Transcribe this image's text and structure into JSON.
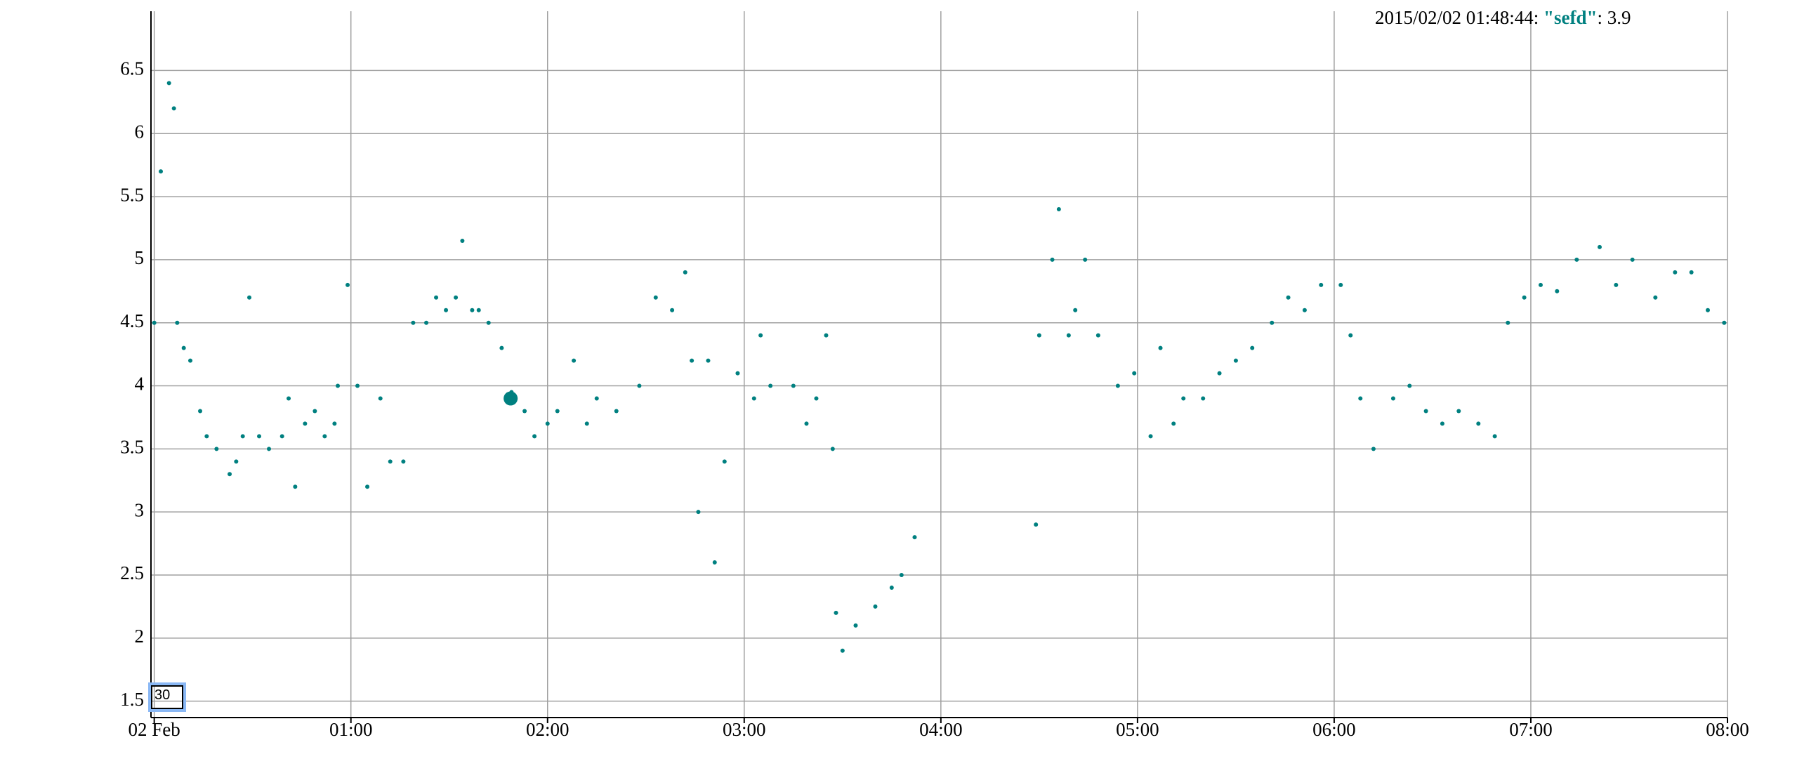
{
  "chart_data": {
    "type": "scatter",
    "x": [
      0,
      2,
      4.5,
      6,
      7,
      9,
      11,
      14,
      16,
      19,
      23,
      25,
      27,
      29,
      32,
      35,
      39,
      41,
      43,
      46,
      49,
      52,
      55,
      56,
      59,
      62,
      65,
      69,
      72,
      76,
      79,
      83,
      86,
      89,
      92,
      94,
      97,
      99,
      102,
      106,
      109,
      113,
      116,
      120,
      123,
      128,
      132,
      135,
      141,
      148,
      153,
      158,
      162,
      164,
      166,
      169,
      171,
      174,
      178,
      183,
      185,
      188,
      195,
      199,
      202,
      205,
      207,
      208,
      210,
      214,
      220,
      225,
      228,
      232,
      269,
      270,
      274,
      276,
      279,
      281,
      284,
      288,
      294,
      299,
      304,
      307,
      311,
      314,
      320,
      325,
      330,
      335,
      341,
      346,
      351,
      356,
      362,
      365,
      368,
      372,
      378,
      383,
      388,
      393,
      398,
      404,
      409,
      413,
      418,
      423,
      428,
      434,
      441,
      446,
      451,
      458,
      464,
      469,
      474,
      479
    ],
    "series": [
      {
        "name": "\"sefd\"",
        "color": "#008080",
        "values": [
          4.5,
          5.7,
          6.4,
          6.2,
          4.5,
          4.3,
          4.2,
          3.8,
          3.6,
          3.5,
          3.3,
          3.4,
          3.6,
          4.7,
          3.6,
          3.5,
          3.6,
          3.9,
          3.2,
          3.7,
          3.8,
          3.6,
          3.7,
          4.0,
          4.8,
          4.0,
          3.2,
          3.9,
          3.4,
          3.4,
          4.5,
          4.5,
          4.7,
          4.6,
          4.7,
          5.15,
          4.6,
          4.6,
          4.5,
          4.3,
          3.95,
          3.8,
          3.6,
          3.7,
          3.8,
          4.2,
          3.7,
          3.9,
          3.8,
          4.0,
          4.7,
          4.6,
          4.9,
          4.2,
          3.0,
          4.2,
          2.6,
          3.4,
          4.1,
          3.9,
          4.4,
          4.0,
          4.0,
          3.7,
          3.9,
          4.4,
          3.5,
          2.2,
          1.9,
          2.1,
          2.25,
          2.4,
          2.5,
          2.8,
          2.9,
          4.4,
          5.0,
          5.4,
          4.4,
          4.6,
          5.0,
          4.4,
          4.0,
          4.1,
          3.6,
          4.3,
          3.7,
          3.9,
          3.9,
          4.1,
          4.2,
          4.3,
          4.5,
          4.7,
          4.6,
          4.8,
          4.8,
          4.4,
          3.9,
          3.5,
          3.9,
          4.0,
          3.8,
          3.7,
          3.8,
          3.7,
          3.6,
          4.5,
          4.7,
          4.8,
          4.75,
          5.0,
          5.1,
          4.8,
          5.0,
          4.7,
          4.9,
          4.9,
          4.6,
          4.5
        ]
      }
    ],
    "xlim": [
      -1,
      480
    ],
    "xticks": [
      {
        "value": 0,
        "label": "02 Feb"
      },
      {
        "value": 60,
        "label": "01:00"
      },
      {
        "value": 120,
        "label": "02:00"
      },
      {
        "value": 180,
        "label": "03:00"
      },
      {
        "value": 240,
        "label": "04:00"
      },
      {
        "value": 300,
        "label": "05:00"
      },
      {
        "value": 360,
        "label": "06:00"
      },
      {
        "value": 420,
        "label": "07:00"
      },
      {
        "value": 480,
        "label": "08:00"
      }
    ],
    "ylim": [
      1.37,
      6.97
    ],
    "yticks": [
      1.5,
      2,
      2.5,
      3,
      3.5,
      4,
      4.5,
      5,
      5.5,
      6,
      6.5
    ],
    "grid": true,
    "selection": {
      "label": "2015/02/02 01:48:44",
      "x": 108.73,
      "value": 3.9
    },
    "roll_period": 30
  }
}
